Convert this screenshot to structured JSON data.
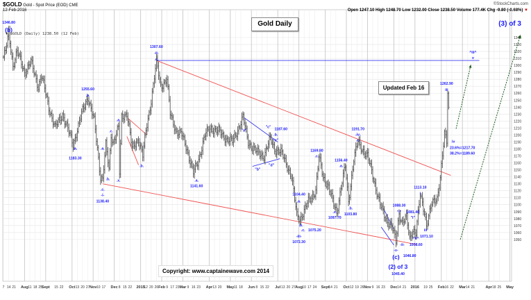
{
  "header": {
    "symbol": "$GOLD",
    "name": "Gold - Spot Price (EOD) CME",
    "date": "12-Feb-2016",
    "source": "©StockCharts.com",
    "quote": "Open 1247.10  High 1248.70  Low 1232.00  Close 1238.50  Volume 177.4K  Chg -9.80 (-0.68%)",
    "chg_arrow": "▼",
    "legend": "▼ $GOLD (Daily) 1238.50 (12 Feb)"
  },
  "boxes": {
    "title": "Gold Daily",
    "updated": "Updated Feb 16",
    "copyright": "Copyright:   www.captainewave.com 2014"
  },
  "colors": {
    "annot": "#1a1aff",
    "bars": "#555555",
    "trend_red": "#f05050",
    "trend_blue": "#3c3cf0",
    "arrow": "#1a5a1a"
  },
  "chart_data": {
    "type": "ohlc",
    "title": "Gold Daily",
    "x_unit": "trading days from 7 Jul 2014",
    "xlim": [
      0,
      480
    ],
    "ylim": [
      1040,
      1345
    ],
    "yticks": [
      1050,
      1060,
      1070,
      1080,
      1090,
      1100,
      1110,
      1120,
      1130,
      1140,
      1150,
      1160,
      1170,
      1180,
      1190,
      1200,
      1210,
      1220,
      1230,
      1240,
      1250,
      1260,
      1270,
      1280,
      1290,
      1300,
      1310,
      1320,
      1330,
      1340
    ],
    "xticks_weeks": [
      [
        0,
        "7"
      ],
      [
        1,
        "14"
      ],
      [
        2,
        "21"
      ],
      [
        4,
        "Aug"
      ],
      [
        5,
        "11"
      ],
      [
        6,
        "18"
      ],
      [
        7,
        "25"
      ],
      [
        8,
        "Sept"
      ],
      [
        10,
        "15"
      ],
      [
        11,
        "22"
      ],
      [
        13,
        "Oct"
      ],
      [
        14,
        "13"
      ],
      [
        15,
        "20"
      ],
      [
        16,
        "27"
      ],
      [
        17,
        "Nov"
      ],
      [
        18,
        "10"
      ],
      [
        19,
        "17"
      ],
      [
        21,
        "Dec"
      ],
      [
        22,
        "8"
      ],
      [
        23,
        "15"
      ],
      [
        24,
        "22"
      ],
      [
        26,
        "2015"
      ],
      [
        27,
        "12"
      ],
      [
        28,
        "20"
      ],
      [
        29,
        "26"
      ],
      [
        30,
        "Feb"
      ],
      [
        31,
        "9"
      ],
      [
        32,
        "17"
      ],
      [
        33,
        "23"
      ],
      [
        34,
        "Mar"
      ],
      [
        35,
        "9"
      ],
      [
        36,
        "16"
      ],
      [
        37,
        "23"
      ],
      [
        39,
        "Apr"
      ],
      [
        40,
        "13"
      ],
      [
        41,
        "20"
      ],
      [
        43,
        "May"
      ],
      [
        44,
        "11"
      ],
      [
        45,
        "18"
      ],
      [
        47,
        "Jun"
      ],
      [
        48,
        "8"
      ],
      [
        49,
        "15"
      ],
      [
        50,
        "22"
      ],
      [
        52,
        "Jul"
      ],
      [
        53,
        "13"
      ],
      [
        54,
        "20"
      ],
      [
        55,
        "27"
      ],
      [
        56,
        "Aug"
      ],
      [
        57,
        "10"
      ],
      [
        58,
        "17"
      ],
      [
        59,
        "24"
      ],
      [
        61,
        "Sept"
      ],
      [
        62,
        "14"
      ],
      [
        63,
        "21"
      ],
      [
        65,
        "Oct"
      ],
      [
        66,
        "12"
      ],
      [
        67,
        "19"
      ],
      [
        68,
        "26"
      ],
      [
        69,
        "Nov"
      ],
      [
        70,
        "9"
      ],
      [
        71,
        "16"
      ],
      [
        72,
        "23"
      ],
      [
        74,
        "Dec"
      ],
      [
        75,
        "14"
      ],
      [
        76,
        "21"
      ],
      [
        78,
        "2016"
      ],
      [
        80,
        "19"
      ],
      [
        81,
        "25"
      ],
      [
        83,
        "Feb"
      ],
      [
        84,
        "16"
      ],
      [
        85,
        "22"
      ],
      [
        87,
        "Mar"
      ],
      [
        88,
        "14"
      ],
      [
        89,
        "21"
      ],
      [
        92,
        "Apr"
      ],
      [
        93,
        "18"
      ],
      [
        94,
        "25"
      ],
      [
        96,
        "May"
      ]
    ],
    "month_labels": [
      "Aug",
      "Sept",
      "Oct",
      "Nov",
      "Dec",
      "2015",
      "Feb",
      "Mar",
      "Apr",
      "May",
      "Jun",
      "Jul",
      "2016"
    ],
    "price_path": [
      [
        0,
        1312
      ],
      [
        2,
        1320
      ],
      [
        5,
        1346
      ],
      [
        9,
        1300
      ],
      [
        13,
        1320
      ],
      [
        20,
        1290
      ],
      [
        26,
        1305
      ],
      [
        33,
        1270
      ],
      [
        36,
        1285
      ],
      [
        43,
        1240
      ],
      [
        49,
        1210
      ],
      [
        56,
        1230
      ],
      [
        66,
        1186
      ],
      [
        74,
        1230
      ],
      [
        80,
        1255
      ],
      [
        86,
        1220
      ],
      [
        89,
        1180
      ],
      [
        92,
        1140
      ],
      [
        94,
        1138
      ],
      [
        97,
        1185
      ],
      [
        100,
        1150
      ],
      [
        102,
        1200
      ],
      [
        104,
        1190
      ],
      [
        109,
        1210
      ],
      [
        110,
        1145
      ],
      [
        112,
        1225
      ],
      [
        117,
        1232
      ],
      [
        122,
        1180
      ],
      [
        128,
        1195
      ],
      [
        132,
        1170
      ],
      [
        135,
        1205
      ],
      [
        140,
        1250
      ],
      [
        145,
        1305
      ],
      [
        149,
        1270
      ],
      [
        155,
        1280
      ],
      [
        158,
        1230
      ],
      [
        164,
        1205
      ],
      [
        169,
        1200
      ],
      [
        174,
        1180
      ],
      [
        180,
        1145
      ],
      [
        184,
        1160
      ],
      [
        191,
        1200
      ],
      [
        197,
        1210
      ],
      [
        204,
        1205
      ],
      [
        211,
        1195
      ],
      [
        217,
        1190
      ],
      [
        227,
        1225
      ],
      [
        232,
        1190
      ],
      [
        240,
        1175
      ],
      [
        247,
        1170
      ],
      [
        253,
        1195
      ],
      [
        257,
        1180
      ],
      [
        263,
        1175
      ],
      [
        268,
        1160
      ],
      [
        273,
        1140
      ],
      [
        278,
        1085
      ],
      [
        281,
        1080
      ],
      [
        285,
        1090
      ],
      [
        289,
        1105
      ],
      [
        296,
        1120
      ],
      [
        299,
        1168
      ],
      [
        303,
        1140
      ],
      [
        307,
        1130
      ],
      [
        313,
        1100
      ],
      [
        316,
        1090
      ],
      [
        320,
        1125
      ],
      [
        324,
        1155
      ],
      [
        327,
        1105
      ],
      [
        332,
        1165
      ],
      [
        336,
        1190
      ],
      [
        340,
        1180
      ],
      [
        345,
        1170
      ],
      [
        352,
        1130
      ],
      [
        357,
        1100
      ],
      [
        362,
        1080
      ],
      [
        368,
        1070
      ],
      [
        372,
        1046
      ],
      [
        375,
        1088
      ],
      [
        378,
        1075
      ],
      [
        382,
        1081
      ],
      [
        385,
        1050
      ],
      [
        388,
        1065
      ],
      [
        391,
        1060
      ],
      [
        395,
        1113
      ],
      [
        399,
        1090
      ],
      [
        401,
        1072
      ],
      [
        406,
        1100
      ],
      [
        411,
        1110
      ],
      [
        414,
        1140
      ],
      [
        418,
        1200
      ],
      [
        420,
        1190
      ],
      [
        421,
        1262
      ],
      [
        422,
        1238
      ]
    ],
    "trendlines": [
      {
        "name": "upper-channel",
        "color": "red",
        "from": [
          145,
          1307
        ],
        "to": [
          424,
          1142
        ]
      },
      {
        "name": "lower-channel",
        "color": "red",
        "from": [
          94,
          1130
        ],
        "to": [
          391,
          1043
        ]
      },
      {
        "name": "wave-ii-resistance",
        "color": "blue",
        "from": [
          145,
          1307
        ],
        "to": [
          451,
          1307
        ]
      },
      {
        "name": "dec-wedge-top",
        "color": "red",
        "from": [
          118,
          1224
        ],
        "to": [
          136,
          1200
        ]
      },
      {
        "name": "dec-wedge-bottom",
        "color": "red",
        "from": [
          117,
          1198
        ],
        "to": [
          128,
          1157
        ]
      },
      {
        "name": "triangle-top",
        "color": "blue",
        "from": [
          228,
          1225
        ],
        "to": [
          260,
          1190
        ]
      },
      {
        "name": "triangle-bottom",
        "color": "blue",
        "from": [
          236,
          1155
        ],
        "to": [
          262,
          1166
        ]
      },
      {
        "name": "wedge-nov-top",
        "color": "blue",
        "from": [
          360,
          1095
        ],
        "to": [
          370,
          1065
        ]
      },
      {
        "name": "wedge-nov-bottom",
        "color": "blue",
        "from": [
          358,
          1068
        ],
        "to": [
          370,
          1042
        ]
      }
    ],
    "projections": [
      {
        "name": "wave-v-target",
        "from": [
          429,
          1209
        ],
        "to": [
          443,
          1301
        ]
      },
      {
        "name": "wave-3-target",
        "from": [
          433,
          1050
        ],
        "to": [
          490,
          1344
        ]
      }
    ],
    "annotations": [
      {
        "t": "1346.80",
        "d": 5,
        "p": 1362
      },
      {
        "t": "(b)",
        "d": 5,
        "p": 1350,
        "big": true
      },
      {
        "t": "1255.60",
        "d": 80,
        "p": 1266
      },
      {
        "t": ".b.",
        "d": 80,
        "p": 1257
      },
      {
        "t": ".a.",
        "d": 68,
        "p": 1181
      },
      {
        "t": "1183.30",
        "d": 68,
        "p": 1167
      },
      {
        "t": ".a.",
        "d": 94,
        "p": 1181
      },
      {
        "t": ".c.",
        "d": 102,
        "p": 1206
      },
      {
        "t": ".a.",
        "d": 109,
        "p": 1222
      },
      {
        "t": ".b.",
        "d": 99,
        "p": 1137
      },
      {
        "t": ".x.",
        "d": 109,
        "p": 1135
      },
      {
        "t": ".b.",
        "d": 131,
        "p": 1156
      },
      {
        "t": ".c.",
        "d": 94,
        "p": 1122
      },
      {
        "t": "-i-",
        "d": 94,
        "p": 1114
      },
      {
        "t": "1138.40",
        "d": 94,
        "p": 1105
      },
      {
        "t": "1307.60",
        "d": 145,
        "p": 1327
      },
      {
        "t": "-ii-",
        "d": 145,
        "p": 1318
      },
      {
        "t": ".c.",
        "d": 145,
        "p": 1309
      },
      {
        "t": ".a.",
        "d": 183,
        "p": 1135
      },
      {
        "t": "1141.60",
        "d": 183,
        "p": 1127
      },
      {
        "t": "\"a\"",
        "d": 228,
        "p": 1207
      },
      {
        "t": "\"c\"",
        "d": 251,
        "p": 1212
      },
      {
        "t": "1187.60",
        "d": 263,
        "p": 1209
      },
      {
        "t": ".b.",
        "d": 258,
        "p": 1201
      },
      {
        "t": "\"e\"",
        "d": 258,
        "p": 1193
      },
      {
        "t": "\"b\"",
        "d": 241,
        "p": 1151
      },
      {
        "t": "\"d\"",
        "d": 254,
        "p": 1157
      },
      {
        "t": "1169.80",
        "d": 297,
        "p": 1178
      },
      {
        "t": ".c.",
        "d": 297,
        "p": 1170
      },
      {
        "t": "1156.40",
        "d": 320,
        "p": 1164
      },
      {
        "t": ".a.",
        "d": 320,
        "p": 1156
      },
      {
        "t": "1191.70",
        "d": 336,
        "p": 1209
      },
      {
        "t": "-iv-",
        "d": 336,
        "p": 1201
      },
      {
        "t": ".c.",
        "d": 336,
        "p": 1193
      },
      {
        "t": "1104.40",
        "d": 280,
        "p": 1115
      },
      {
        "t": ".a.",
        "d": 280,
        "p": 1105
      },
      {
        "t": ".b.",
        "d": 282,
        "p": 1071
      },
      {
        "t": ".c.",
        "d": 284,
        "p": 1064
      },
      {
        "t": "1075.20",
        "d": 295,
        "p": 1064
      },
      {
        "t": "-iii-",
        "d": 280,
        "p": 1055
      },
      {
        "t": "1072.30",
        "d": 280,
        "p": 1047
      },
      {
        "t": ".x.",
        "d": 314,
        "p": 1090
      },
      {
        "t": "1097.70",
        "d": 314,
        "p": 1082
      },
      {
        "t": ".b.",
        "d": 329,
        "p": 1095
      },
      {
        "t": "1103.80",
        "d": 329,
        "p": 1087
      },
      {
        "t": "1088.30",
        "d": 375,
        "p": 1099
      },
      {
        "t": "\"i\"",
        "d": 375,
        "p": 1090
      },
      {
        "t": "1081.40",
        "d": 388,
        "p": 1090
      },
      {
        "t": "\"i\"",
        "d": 388,
        "p": 1082
      },
      {
        "t": "1113.10",
        "d": 395,
        "p": 1125
      },
      {
        "t": "i",
        "d": 395,
        "p": 1116
      },
      {
        "t": "iii",
        "d": 400,
        "p": 1064
      },
      {
        "t": "1071.10",
        "d": 401,
        "p": 1055
      },
      {
        "t": "^ii^",
        "d": 391,
        "p": 1052
      },
      {
        "t": "1058.60",
        "d": 391,
        "p": 1043
      },
      {
        "t": "-ii-",
        "d": 378,
        "p": 1043
      },
      {
        "t": "-v-",
        "d": 372,
        "p": 1035
      },
      {
        "t": "(c)",
        "d": 372,
        "p": 1024,
        "big": true
      },
      {
        "t": "1046.80",
        "d": 385,
        "p": 1027
      },
      {
        "t": "(2) of 3",
        "d": 374,
        "p": 1010,
        "big": true
      },
      {
        "t": "1045.40",
        "d": 374,
        "p": 1001
      },
      {
        "t": "1262.90",
        "d": 420,
        "p": 1274
      },
      {
        "t": "iii",
        "d": 420,
        "p": 1265
      },
      {
        "t": "iv",
        "d": 425,
        "p": 1191,
        "left": true
      },
      {
        "t": "23.6%=1217.70",
        "d": 423,
        "p": 1182,
        "left": true
      },
      {
        "t": "38.2%=1189.60",
        "d": 423,
        "p": 1174,
        "left": true
      },
      {
        "t": "^iii^",
        "d": 445,
        "p": 1319
      },
      {
        "t": "v",
        "d": 445,
        "p": 1311
      },
      {
        "t": "(3) of 3",
        "d": 480,
        "p": 1359,
        "big": true,
        "huge": true
      }
    ]
  }
}
